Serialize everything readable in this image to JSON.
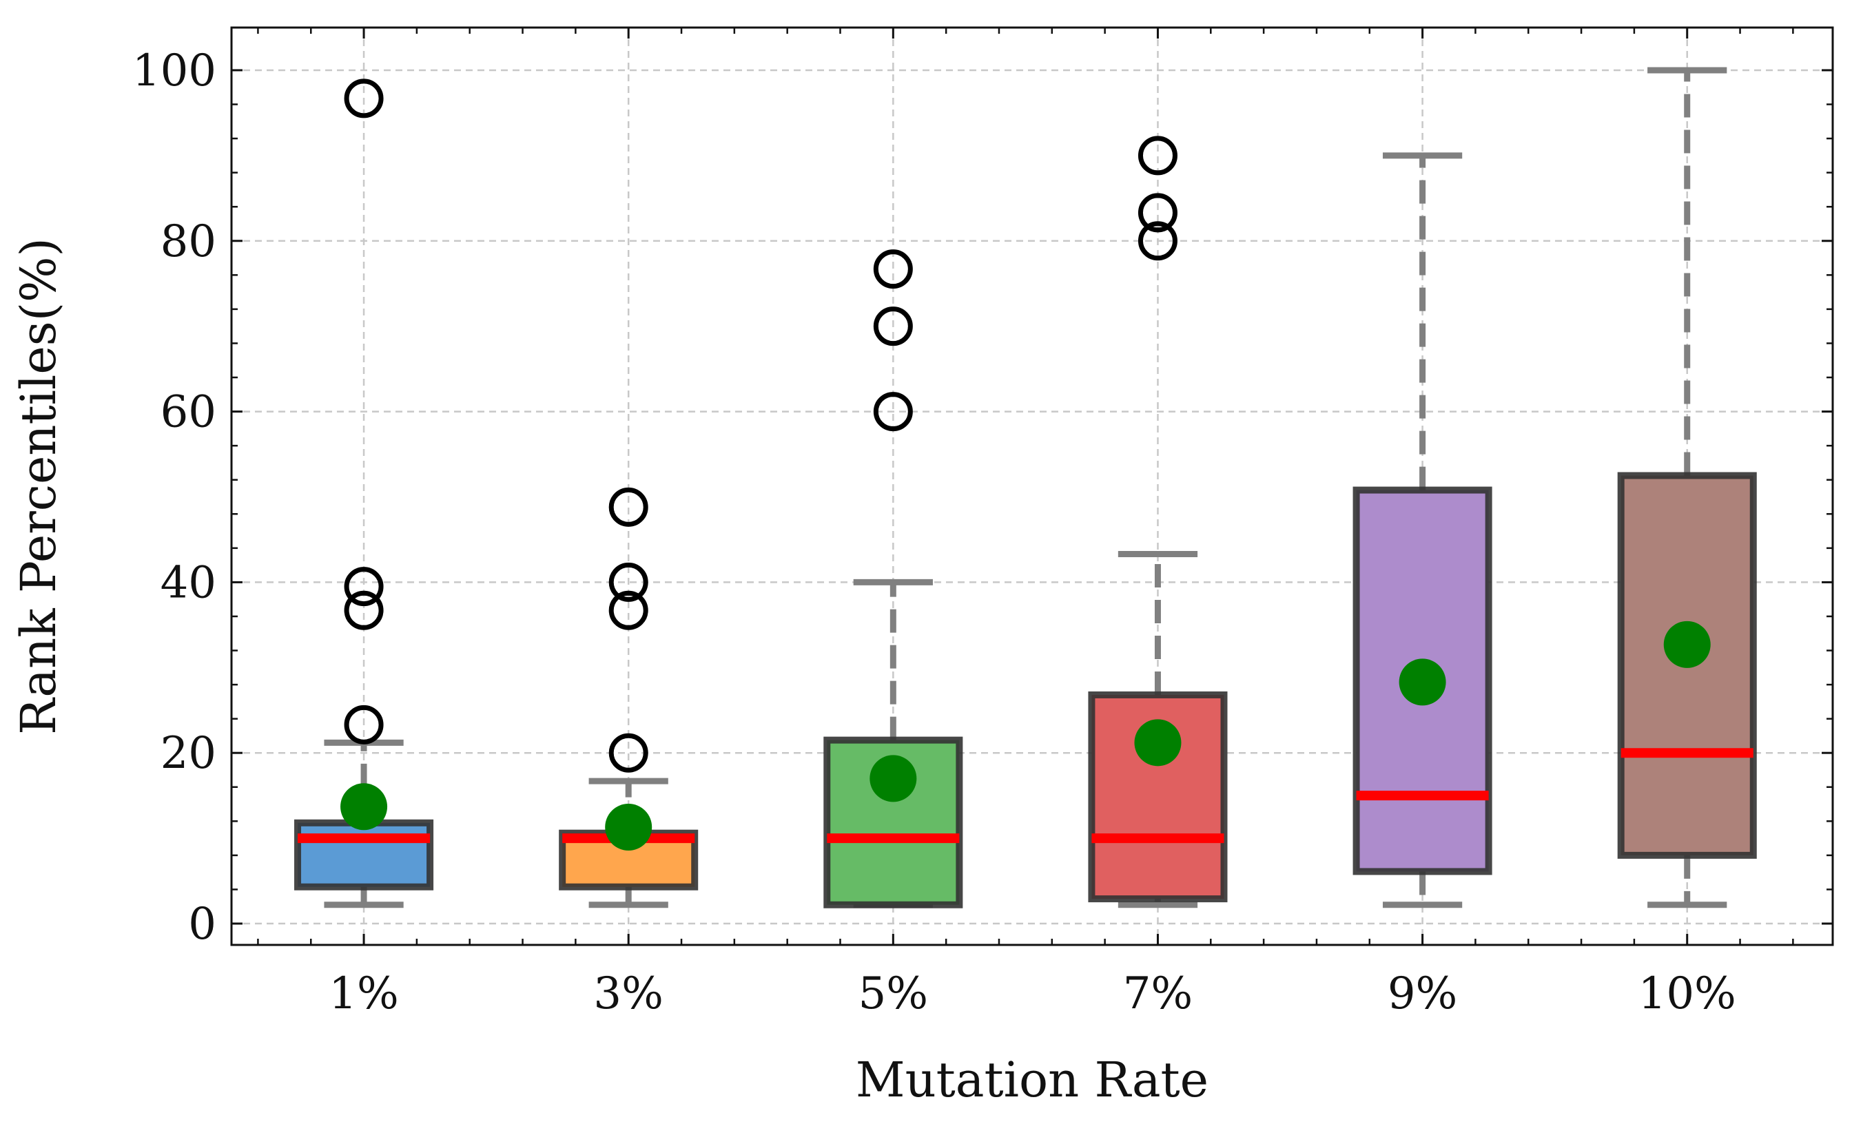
{
  "chart_data": {
    "type": "boxplot",
    "xlabel": "Mutation Rate",
    "ylabel": "Rank Percentiles(%)",
    "ylim": [
      -2.5,
      105
    ],
    "yticks": [
      0,
      20,
      40,
      60,
      80,
      100
    ],
    "grid": true,
    "categories": [
      "1%",
      "3%",
      "5%",
      "7%",
      "9%",
      "10%"
    ],
    "colors": {
      "box_fills": [
        "#5b9bd5",
        "#ffa64d",
        "#66bb66",
        "#e06060",
        "#ad8ccc",
        "#ad827a"
      ],
      "box_edge": "#333333",
      "median": "#ff0000",
      "mean": "#008000",
      "whisker": "#808080",
      "outlier": "#000000",
      "grid": "#c8c8c8"
    },
    "boxes": [
      {
        "whislo": 2.2,
        "q1": 4.3,
        "med": 10,
        "q3": 11.8,
        "whishi": 21.2,
        "mean": 13.7,
        "fliers": [
          23.3,
          36.7,
          39.5,
          96.7
        ]
      },
      {
        "whislo": 2.2,
        "q1": 4.3,
        "med": 10,
        "q3": 10.6,
        "whishi": 16.7,
        "mean": 11.3,
        "fliers": [
          20,
          36.7,
          40,
          48.8
        ]
      },
      {
        "whislo": 2.2,
        "q1": 2.2,
        "med": 10,
        "q3": 21.5,
        "whishi": 40,
        "mean": 17,
        "fliers": [
          60,
          70,
          76.7
        ]
      },
      {
        "whislo": 2.2,
        "q1": 2.9,
        "med": 10,
        "q3": 26.8,
        "whishi": 43.3,
        "mean": 21.2,
        "fliers": [
          80,
          83.3,
          90
        ]
      },
      {
        "whislo": 2.2,
        "q1": 6.1,
        "med": 15,
        "q3": 50.8,
        "whishi": 90,
        "mean": 28.3,
        "fliers": []
      },
      {
        "whislo": 2.2,
        "q1": 8,
        "med": 20,
        "q3": 52.5,
        "whishi": 100,
        "mean": 32.7,
        "fliers": []
      }
    ]
  }
}
